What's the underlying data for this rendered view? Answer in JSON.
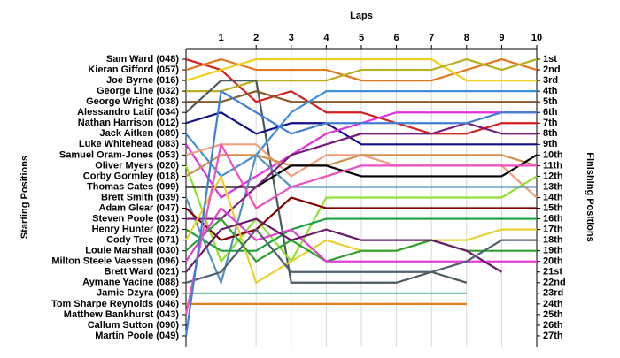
{
  "chart_data": {
    "type": "line",
    "title": "Laps",
    "y_label": "Starting Positions",
    "y2_label": "Finishing Positions",
    "x": [
      0,
      1,
      2,
      3,
      4,
      5,
      6,
      7,
      8,
      9,
      10
    ],
    "xlim": [
      0,
      10
    ],
    "xticks": [
      1,
      2,
      3,
      4,
      5,
      6,
      7,
      8,
      9,
      10
    ],
    "ylim": [
      28,
      0
    ],
    "y2lim": [
      28,
      0
    ],
    "grid": true,
    "yticks": [
      {
        "value": 1,
        "label": "Sam Ward (048)"
      },
      {
        "value": 2,
        "label": "Kieran Gifford (057)"
      },
      {
        "value": 3,
        "label": "Joe Byrne (016)"
      },
      {
        "value": 4,
        "label": "George Line (032)"
      },
      {
        "value": 5,
        "label": "George Wright (038)"
      },
      {
        "value": 6,
        "label": "Alessandro Latif (034)"
      },
      {
        "value": 7,
        "label": "Nathan Harrison (012)"
      },
      {
        "value": 8,
        "label": "Jack Aitken (089)"
      },
      {
        "value": 9,
        "label": "Luke Whitehead (083)"
      },
      {
        "value": 10,
        "label": "Samuel Oram-Jones (053)"
      },
      {
        "value": 11,
        "label": "Oliver Myers (020)"
      },
      {
        "value": 12,
        "label": "Corby Gormley (018)"
      },
      {
        "value": 13,
        "label": "Thomas Cates (099)"
      },
      {
        "value": 14,
        "label": "Brett Smith (039)"
      },
      {
        "value": 15,
        "label": "Adam Glear (047)"
      },
      {
        "value": 16,
        "label": "Steven Poole (031)"
      },
      {
        "value": 17,
        "label": "Henry Hunter (022)"
      },
      {
        "value": 18,
        "label": "Cody Tree (071)"
      },
      {
        "value": 19,
        "label": "Louie Marshall (030)"
      },
      {
        "value": 20,
        "label": "Milton Steele Vaessen (096)"
      },
      {
        "value": 21,
        "label": "Brett Ward (021)"
      },
      {
        "value": 22,
        "label": "Aymane Yacine (088)"
      },
      {
        "value": 23,
        "label": "Jamie Dzyra (009)"
      },
      {
        "value": 24,
        "label": "Tom Sharpe Reynolds (046)"
      },
      {
        "value": 25,
        "label": "Matthew Bankhurst (043)"
      },
      {
        "value": 26,
        "label": "Callum Sutton (090)"
      },
      {
        "value": 27,
        "label": "Martin Poole (049)"
      }
    ],
    "y2ticks": [
      {
        "value": 1,
        "label": "1st"
      },
      {
        "value": 2,
        "label": "2nd"
      },
      {
        "value": 3,
        "label": "3rd"
      },
      {
        "value": 4,
        "label": "4th"
      },
      {
        "value": 5,
        "label": "5th"
      },
      {
        "value": 6,
        "label": "6th"
      },
      {
        "value": 7,
        "label": "7th"
      },
      {
        "value": 8,
        "label": "8th"
      },
      {
        "value": 9,
        "label": "9th"
      },
      {
        "value": 10,
        "label": "10th"
      },
      {
        "value": 11,
        "label": "11th"
      },
      {
        "value": 12,
        "label": "12th"
      },
      {
        "value": 13,
        "label": "13th"
      },
      {
        "value": 14,
        "label": "14th"
      },
      {
        "value": 15,
        "label": "15th"
      },
      {
        "value": 16,
        "label": "16th"
      },
      {
        "value": 17,
        "label": "17th"
      },
      {
        "value": 18,
        "label": "18th"
      },
      {
        "value": 19,
        "label": "19th"
      },
      {
        "value": 20,
        "label": "20th"
      },
      {
        "value": 21,
        "label": "21st"
      },
      {
        "value": 22,
        "label": "22nd"
      },
      {
        "value": 23,
        "label": "23rd"
      },
      {
        "value": 24,
        "label": "24th"
      },
      {
        "value": 25,
        "label": "25th"
      },
      {
        "value": 26,
        "label": "26th"
      },
      {
        "value": 27,
        "label": "27th"
      }
    ],
    "series": [
      {
        "color": "#d42020",
        "values": [
          1,
          2,
          5,
          4,
          6,
          6,
          7,
          8,
          8,
          7,
          7
        ]
      },
      {
        "color": "#e07a20",
        "values": [
          2,
          1,
          2,
          2,
          2,
          3,
          3,
          3,
          2,
          1,
          2
        ]
      },
      {
        "color": "#f0d020",
        "values": [
          3,
          2,
          1,
          1,
          1,
          1,
          1,
          1,
          3,
          3,
          3
        ]
      },
      {
        "color": "#b8b020",
        "values": [
          4,
          4,
          3,
          3,
          3,
          2,
          2,
          2,
          1,
          2,
          1
        ]
      },
      {
        "color": "#8b5a2b",
        "values": [
          5,
          5,
          4,
          5,
          5,
          5,
          5,
          5,
          5,
          5,
          5
        ]
      },
      {
        "color": "#4a5a60",
        "values": [
          6,
          3,
          3,
          22,
          22,
          22,
          22,
          21,
          22,
          null,
          null
        ]
      },
      {
        "color": "#10108a",
        "values": [
          7,
          6,
          8,
          7,
          7,
          9,
          9,
          9,
          9,
          9,
          9
        ]
      },
      {
        "color": "#3f8fd8",
        "values": [
          8,
          12,
          10,
          6,
          4,
          4,
          4,
          4,
          4,
          4,
          4
        ]
      },
      {
        "color": "#e030e0",
        "values": [
          9,
          14,
          12,
          10,
          8,
          7,
          6,
          6,
          6,
          6,
          6
        ]
      },
      {
        "color": "#f0a080",
        "values": [
          10,
          9,
          9,
          12,
          10,
          10,
          11,
          11,
          11,
          11,
          14
        ]
      },
      {
        "color": "#90e030",
        "values": [
          11,
          20,
          16,
          20,
          14,
          14,
          14,
          14,
          14,
          14,
          12
        ]
      },
      {
        "color": "#d09050",
        "values": [
          12,
          10,
          10,
          11,
          11,
          10,
          10,
          10,
          10,
          10,
          11
        ]
      },
      {
        "color": "#000000",
        "values": [
          13,
          13,
          13,
          11,
          11,
          12,
          12,
          12,
          12,
          12,
          10
        ]
      },
      {
        "color": "#5590c0",
        "values": [
          14,
          22,
          10,
          13,
          13,
          13,
          13,
          13,
          13,
          13,
          13
        ]
      },
      {
        "color": "#800000",
        "values": [
          15,
          18,
          17,
          14,
          15,
          15,
          15,
          15,
          15,
          15,
          15
        ]
      },
      {
        "color": "#7a1a7a",
        "values": [
          16,
          16,
          13,
          10,
          9,
          8,
          8,
          8,
          7,
          8,
          8
        ]
      },
      {
        "color": "#20a040",
        "values": [
          17,
          19,
          19,
          17,
          16,
          16,
          16,
          16,
          16,
          16,
          16
        ]
      },
      {
        "color": "#e8d030",
        "values": [
          18,
          12,
          22,
          20,
          18,
          19,
          19,
          18,
          18,
          17,
          17
        ]
      },
      {
        "color": "#30a030",
        "values": [
          19,
          16,
          20,
          18,
          20,
          19,
          19,
          18,
          19,
          19,
          19
        ]
      },
      {
        "color": "#e040d0",
        "values": [
          20,
          15,
          18,
          17,
          20,
          20,
          20,
          20,
          20,
          20,
          20
        ]
      },
      {
        "color": "#6a1a6a",
        "values": [
          21,
          17,
          16,
          18,
          17,
          18,
          18,
          18,
          19,
          21,
          null
        ]
      },
      {
        "color": "#506070",
        "values": [
          22,
          21,
          17,
          21,
          21,
          21,
          21,
          21,
          20,
          18,
          18
        ]
      },
      {
        "color": "#70c0a0",
        "values": [
          23,
          23,
          23,
          23,
          23,
          23,
          23,
          23,
          23,
          null,
          null
        ]
      },
      {
        "color": "#e08020",
        "values": [
          24,
          24,
          24,
          24,
          24,
          24,
          24,
          24,
          24,
          null,
          null
        ]
      },
      {
        "color": "#f050c0",
        "values": [
          25,
          9,
          15,
          13,
          12,
          11,
          11,
          11,
          11,
          11,
          11
        ]
      },
      {
        "color": "#707070",
        "values": [
          26,
          null,
          null,
          null,
          null,
          null,
          null,
          null,
          null,
          null,
          null
        ]
      },
      {
        "color": "#4080d0",
        "values": [
          27,
          4,
          6,
          8,
          7,
          7,
          7,
          7,
          7,
          6,
          6
        ]
      }
    ]
  }
}
